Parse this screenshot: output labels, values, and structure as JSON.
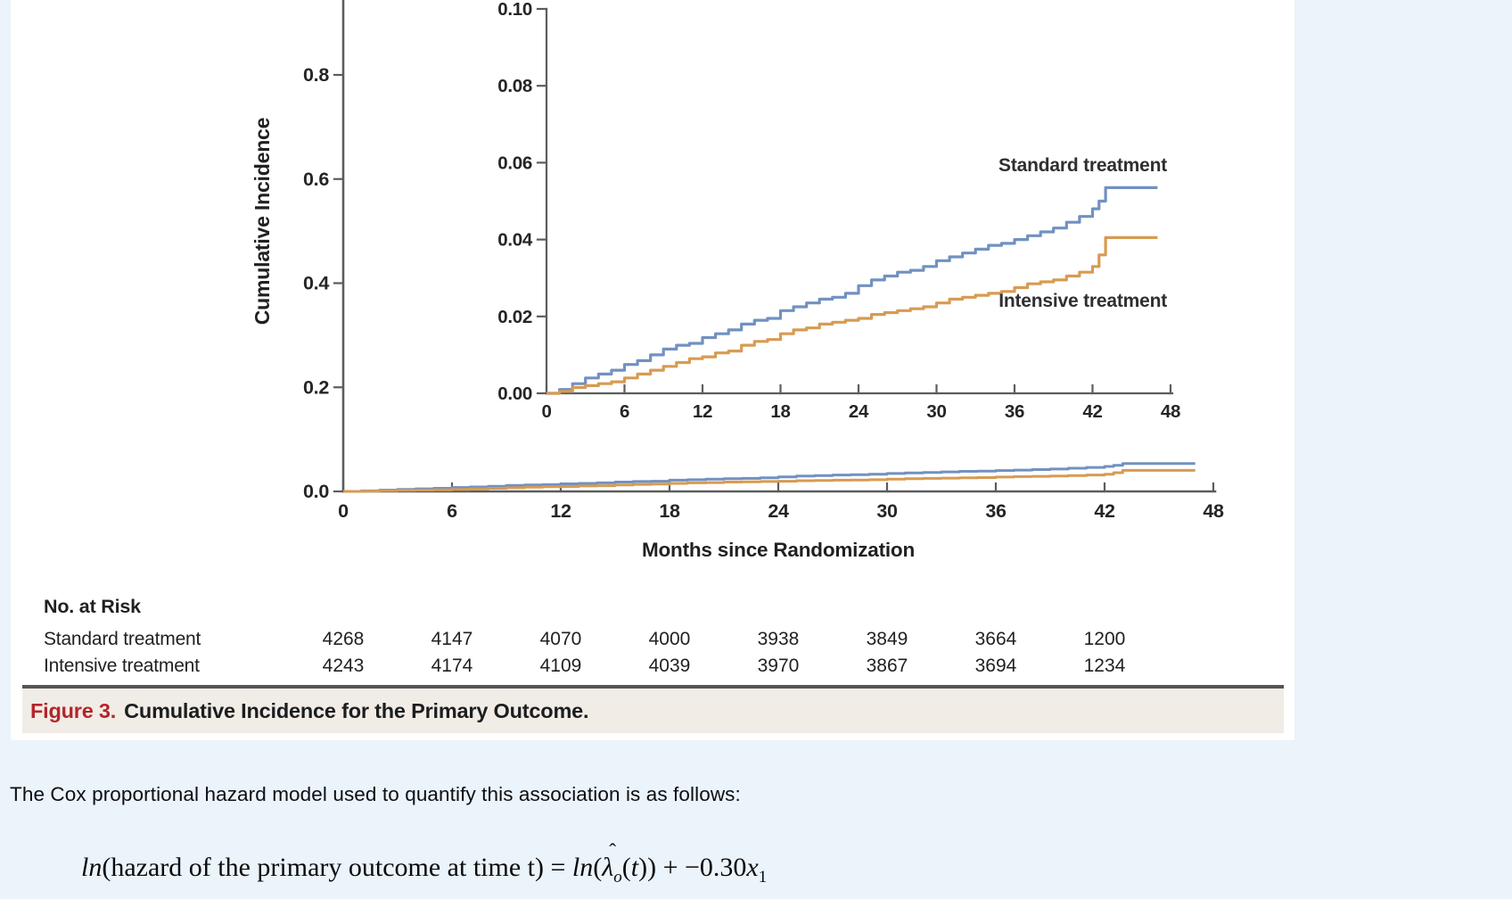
{
  "colors": {
    "page_bg": "#ebf3fb",
    "panel_bg": "#ffffff",
    "caption_bg": "#f1ece5",
    "caption_red": "#b3252c",
    "rule": "#54555a",
    "axis": "#5b5c5f",
    "ink": "#1f2022"
  },
  "figure": {
    "caption": {
      "label": "Figure 3.",
      "title": "Cumulative Incidence for the Primary Outcome."
    },
    "no_at_risk": {
      "heading": "No. at Risk",
      "months": [
        0,
        6,
        12,
        18,
        24,
        30,
        36,
        42
      ],
      "rows": [
        {
          "label": "Standard treatment",
          "values": [
            "4268",
            "4147",
            "4070",
            "4000",
            "3938",
            "3849",
            "3664",
            "1200"
          ]
        },
        {
          "label": "Intensive treatment",
          "values": [
            "4243",
            "4174",
            "4109",
            "4039",
            "3970",
            "3867",
            "3694",
            "1234"
          ]
        }
      ]
    }
  },
  "chart_data": [
    {
      "panel": "main",
      "type": "line",
      "title": "",
      "xlabel": "Months since Randomization",
      "ylabel": "Cumulative Incidence",
      "xlim": [
        0,
        48
      ],
      "ylim": [
        0,
        0.94
      ],
      "grid": false,
      "x_ticks": [
        0,
        6,
        12,
        18,
        24,
        30,
        36,
        42,
        48
      ],
      "y_ticks": [
        {
          "v": 0.0,
          "label": "0.0"
        },
        {
          "v": 0.2,
          "label": "0.2"
        },
        {
          "v": 0.4,
          "label": "0.4"
        },
        {
          "v": 0.6,
          "label": "0.6"
        },
        {
          "v": 0.8,
          "label": "0.8"
        }
      ],
      "months": [
        0,
        1,
        2,
        3,
        4,
        5,
        6,
        7,
        8,
        9,
        10,
        11,
        12,
        13,
        14,
        15,
        16,
        17,
        18,
        19,
        20,
        21,
        22,
        23,
        24,
        25,
        26,
        27,
        28,
        29,
        30,
        31,
        32,
        33,
        34,
        35,
        36,
        37,
        38,
        39,
        40,
        41,
        42,
        42.5,
        43,
        47
      ],
      "series": [
        {
          "name": "Standard treatment",
          "color": "#7191c1",
          "values": [
            0,
            0.001,
            0.0025,
            0.004,
            0.005,
            0.006,
            0.0075,
            0.0085,
            0.01,
            0.0115,
            0.0125,
            0.013,
            0.0145,
            0.0155,
            0.0165,
            0.018,
            0.019,
            0.0195,
            0.0215,
            0.0225,
            0.0235,
            0.0245,
            0.025,
            0.026,
            0.028,
            0.0295,
            0.0305,
            0.0315,
            0.032,
            0.033,
            0.0345,
            0.0355,
            0.0365,
            0.0375,
            0.0385,
            0.039,
            0.04,
            0.041,
            0.042,
            0.043,
            0.0445,
            0.046,
            0.048,
            0.05,
            0.0535,
            0.0535
          ]
        },
        {
          "name": "Intensive treatment",
          "color": "#d79b52",
          "values": [
            0,
            0.0005,
            0.0015,
            0.002,
            0.0025,
            0.003,
            0.004,
            0.005,
            0.006,
            0.007,
            0.008,
            0.009,
            0.0095,
            0.0105,
            0.011,
            0.0125,
            0.0135,
            0.014,
            0.0155,
            0.0165,
            0.017,
            0.018,
            0.0185,
            0.019,
            0.0195,
            0.0205,
            0.021,
            0.0215,
            0.022,
            0.0225,
            0.0235,
            0.0245,
            0.025,
            0.0255,
            0.026,
            0.0265,
            0.0275,
            0.0285,
            0.029,
            0.0295,
            0.0305,
            0.0315,
            0.033,
            0.036,
            0.0405,
            0.0405
          ]
        }
      ]
    },
    {
      "panel": "inset",
      "type": "line",
      "title": "",
      "xlabel": "",
      "ylabel": "",
      "xlim": [
        0,
        48
      ],
      "ylim": [
        0,
        0.1
      ],
      "grid": false,
      "legend_position": "inline-right",
      "x_ticks": [
        0,
        6,
        12,
        18,
        24,
        30,
        36,
        42,
        48
      ],
      "y_ticks": [
        {
          "v": 0.0,
          "label": "0.00"
        },
        {
          "v": 0.02,
          "label": "0.02"
        },
        {
          "v": 0.04,
          "label": "0.04"
        },
        {
          "v": 0.06,
          "label": "0.06"
        },
        {
          "v": 0.08,
          "label": "0.08"
        },
        {
          "v": 0.1,
          "label": "0.10"
        }
      ],
      "months": [
        0,
        1,
        2,
        3,
        4,
        5,
        6,
        7,
        8,
        9,
        10,
        11,
        12,
        13,
        14,
        15,
        16,
        17,
        18,
        19,
        20,
        21,
        22,
        23,
        24,
        25,
        26,
        27,
        28,
        29,
        30,
        31,
        32,
        33,
        34,
        35,
        36,
        37,
        38,
        39,
        40,
        41,
        42,
        42.5,
        43,
        47
      ],
      "series": [
        {
          "name": "Standard treatment",
          "color": "#7191c1",
          "values": [
            0,
            0.001,
            0.0025,
            0.004,
            0.005,
            0.006,
            0.0075,
            0.0085,
            0.01,
            0.0115,
            0.0125,
            0.013,
            0.0145,
            0.0155,
            0.0165,
            0.018,
            0.019,
            0.0195,
            0.0215,
            0.0225,
            0.0235,
            0.0245,
            0.025,
            0.026,
            0.028,
            0.0295,
            0.0305,
            0.0315,
            0.032,
            0.033,
            0.0345,
            0.0355,
            0.0365,
            0.0375,
            0.0385,
            0.039,
            0.04,
            0.041,
            0.042,
            0.043,
            0.0445,
            0.046,
            0.048,
            0.05,
            0.0535,
            0.0535
          ]
        },
        {
          "name": "Intensive treatment",
          "color": "#d79b52",
          "values": [
            0,
            0.0005,
            0.0015,
            0.002,
            0.0025,
            0.003,
            0.004,
            0.005,
            0.006,
            0.007,
            0.008,
            0.009,
            0.0095,
            0.0105,
            0.011,
            0.0125,
            0.0135,
            0.014,
            0.0155,
            0.0165,
            0.017,
            0.018,
            0.0185,
            0.019,
            0.0195,
            0.0205,
            0.021,
            0.0215,
            0.022,
            0.0225,
            0.0235,
            0.0245,
            0.025,
            0.0255,
            0.026,
            0.0265,
            0.0275,
            0.0285,
            0.029,
            0.0295,
            0.0305,
            0.0315,
            0.033,
            0.036,
            0.0405,
            0.0405
          ]
        }
      ]
    }
  ],
  "body_text": {
    "sentence": "The Cox proportional hazard model used to quantify this association is as follows:"
  },
  "formula": {
    "ln1": "ln",
    "part1": "(hazard of the primary outcome at time t) = ",
    "ln2": "ln",
    "open2": "(",
    "hat": "ˆ",
    "lambda": "λ",
    "sub_o": "o",
    "part2": "(",
    "t": "t",
    "part3": ")) + −0.30",
    "x": "x",
    "sub_x": "1"
  }
}
